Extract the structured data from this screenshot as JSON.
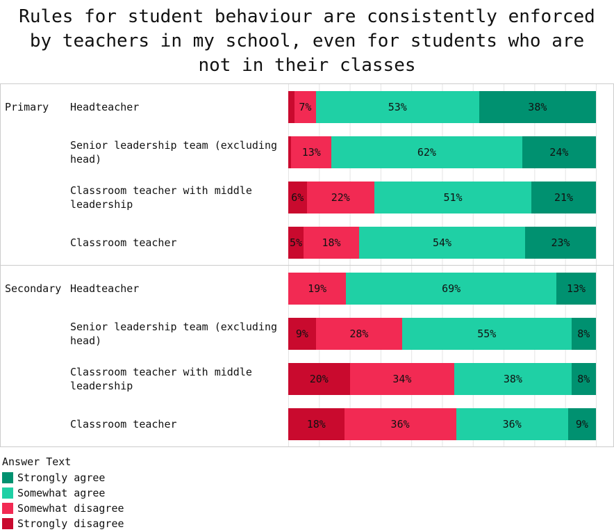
{
  "title": {
    "lines": [
      "Rules for student behaviour are consistently enforced",
      "by teachers in my school, even for students who are",
      "not in their classes"
    ]
  },
  "legend": {
    "title": "Answer Text",
    "items": [
      {
        "label": "Strongly agree",
        "color": "#009170"
      },
      {
        "label": "Somewhat agree",
        "color": "#1fd0a5"
      },
      {
        "label": "Somewhat disagree",
        "color": "#f22a53"
      },
      {
        "label": "Strongly disagree",
        "color": "#c90a2e"
      }
    ]
  },
  "chart_data": {
    "type": "bar",
    "orientation": "horizontal",
    "stacked": true,
    "unit": "percent",
    "title": "Rules for student behaviour are consistently enforced by teachers in my school, even for students who are not in their classes",
    "legend_title": "Answer Text",
    "legend_position": "bottom-left",
    "x_axis": {
      "min": 0,
      "max": 100,
      "gridline_interval": 10,
      "tick_labels_visible": false,
      "grid": true
    },
    "series_order_in_bar": [
      "Strongly disagree",
      "Somewhat disagree",
      "Somewhat agree",
      "Strongly agree"
    ],
    "colors": {
      "Strongly agree": "#009170",
      "Somewhat agree": "#1fd0a5",
      "Somewhat disagree": "#f22a53",
      "Strongly disagree": "#c90a2e"
    },
    "groups": [
      {
        "group": "Primary",
        "rows": [
          {
            "label": "Headteacher",
            "segments": [
              {
                "series": "Strongly disagree",
                "value": 2,
                "label": ""
              },
              {
                "series": "Somewhat disagree",
                "value": 7,
                "label": "7%"
              },
              {
                "series": "Somewhat agree",
                "value": 53,
                "label": "53%"
              },
              {
                "series": "Strongly agree",
                "value": 38,
                "label": "38%"
              }
            ]
          },
          {
            "label": "Senior leadership team (excluding head)",
            "segments": [
              {
                "series": "Strongly disagree",
                "value": 1,
                "label": ""
              },
              {
                "series": "Somewhat disagree",
                "value": 13,
                "label": "13%"
              },
              {
                "series": "Somewhat agree",
                "value": 62,
                "label": "62%"
              },
              {
                "series": "Strongly agree",
                "value": 24,
                "label": "24%"
              }
            ]
          },
          {
            "label": "Classroom teacher with middle leadership",
            "segments": [
              {
                "series": "Strongly disagree",
                "value": 6,
                "label": "6%"
              },
              {
                "series": "Somewhat disagree",
                "value": 22,
                "label": "22%"
              },
              {
                "series": "Somewhat agree",
                "value": 51,
                "label": "51%"
              },
              {
                "series": "Strongly agree",
                "value": 21,
                "label": "21%"
              }
            ]
          },
          {
            "label": "Classroom teacher",
            "segments": [
              {
                "series": "Strongly disagree",
                "value": 5,
                "label": "5%"
              },
              {
                "series": "Somewhat disagree",
                "value": 18,
                "label": "18%"
              },
              {
                "series": "Somewhat agree",
                "value": 54,
                "label": "54%"
              },
              {
                "series": "Strongly agree",
                "value": 23,
                "label": "23%"
              }
            ]
          }
        ]
      },
      {
        "group": "Secondary",
        "rows": [
          {
            "label": "Headteacher",
            "segments": [
              {
                "series": "Somewhat disagree",
                "value": 19,
                "label": "19%"
              },
              {
                "series": "Somewhat agree",
                "value": 69,
                "label": "69%"
              },
              {
                "series": "Strongly agree",
                "value": 13,
                "label": "13%"
              }
            ]
          },
          {
            "label": "Senior leadership team (excluding head)",
            "segments": [
              {
                "series": "Strongly disagree",
                "value": 9,
                "label": "9%"
              },
              {
                "series": "Somewhat disagree",
                "value": 28,
                "label": "28%"
              },
              {
                "series": "Somewhat agree",
                "value": 55,
                "label": "55%"
              },
              {
                "series": "Strongly agree",
                "value": 8,
                "label": "8%"
              }
            ]
          },
          {
            "label": "Classroom teacher with middle leadership",
            "segments": [
              {
                "series": "Strongly disagree",
                "value": 20,
                "label": "20%"
              },
              {
                "series": "Somewhat disagree",
                "value": 34,
                "label": "34%"
              },
              {
                "series": "Somewhat agree",
                "value": 38,
                "label": "38%"
              },
              {
                "series": "Strongly agree",
                "value": 8,
                "label": "8%"
              }
            ]
          },
          {
            "label": "Classroom teacher",
            "segments": [
              {
                "series": "Strongly disagree",
                "value": 18,
                "label": "18%"
              },
              {
                "series": "Somewhat disagree",
                "value": 36,
                "label": "36%"
              },
              {
                "series": "Somewhat agree",
                "value": 36,
                "label": "36%"
              },
              {
                "series": "Strongly agree",
                "value": 9,
                "label": "9%"
              }
            ]
          }
        ]
      }
    ]
  }
}
